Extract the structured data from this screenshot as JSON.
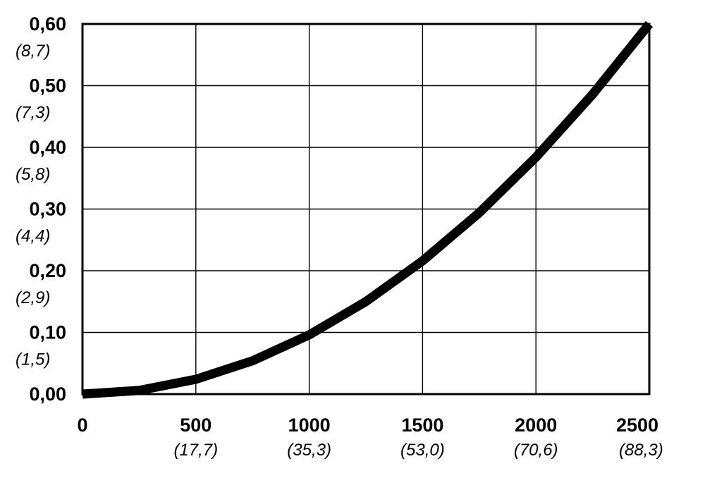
{
  "chart_data": {
    "type": "line",
    "title": "",
    "xlabel": "",
    "ylabel": "",
    "xlim": [
      0,
      2500
    ],
    "ylim": [
      0,
      0.6
    ],
    "grid": true,
    "x_ticks": [
      {
        "value": 0,
        "label": "0",
        "sublabel": ""
      },
      {
        "value": 500,
        "label": "500",
        "sublabel": "(17,7)"
      },
      {
        "value": 1000,
        "label": "1000",
        "sublabel": "(35,3)"
      },
      {
        "value": 1500,
        "label": "1500",
        "sublabel": "(53,0)"
      },
      {
        "value": 2000,
        "label": "2000",
        "sublabel": "(70,6)"
      },
      {
        "value": 2500,
        "label": "2500",
        "sublabel": "(88,3)"
      }
    ],
    "y_ticks": [
      {
        "value": 0,
        "label": "0,00",
        "sublabel": ""
      },
      {
        "value": 0.1,
        "label": "0,10",
        "sublabel": "(1,5)"
      },
      {
        "value": 0.2,
        "label": "0,20",
        "sublabel": "(2,9)"
      },
      {
        "value": 0.3,
        "label": "0,30",
        "sublabel": "(4,4)"
      },
      {
        "value": 0.4,
        "label": "0,40",
        "sublabel": "(5,8)"
      },
      {
        "value": 0.5,
        "label": "0,50",
        "sublabel": "(7,3)"
      },
      {
        "value": 0.6,
        "label": "0,60",
        "sublabel": "(8,7)"
      }
    ],
    "series": [
      {
        "color": "#000000",
        "x": [
          0,
          250,
          500,
          750,
          1000,
          1250,
          1500,
          1750,
          2000,
          2250,
          2500
        ],
        "y": [
          0.0,
          0.006,
          0.024,
          0.054,
          0.096,
          0.15,
          0.216,
          0.294,
          0.384,
          0.486,
          0.6
        ]
      }
    ]
  }
}
